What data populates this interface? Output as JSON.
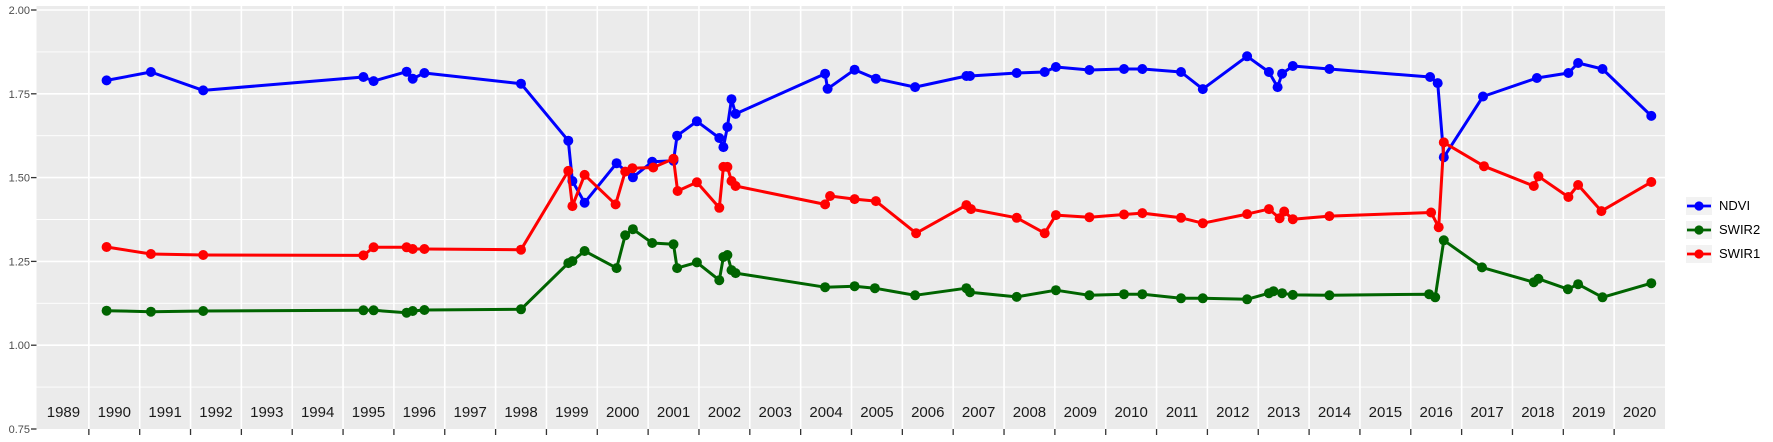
{
  "window": {
    "background": "#FFFFFF"
  },
  "panel": {
    "background": "#EBEBEB",
    "grid_color": "#FFFFFF",
    "tick_color": "#333333",
    "y_label_color": "#4D4D4D",
    "x_label_color": "#1A1A1A"
  },
  "legend": {
    "items": [
      {
        "label": "NDVI",
        "color": "#0000FF"
      },
      {
        "label": "SWIR2",
        "color": "#006400"
      },
      {
        "label": "SWIR1",
        "color": "#FF0000"
      }
    ]
  },
  "chart_data": {
    "type": "line",
    "title": "",
    "xlabel": "",
    "ylabel": "",
    "grid": true,
    "legend_position": "right",
    "x_range": [
      1989,
      2021
    ],
    "ylim": [
      0.75,
      2.0
    ],
    "y_tick_values": [
      2.0,
      1.75,
      1.5,
      1.25,
      1.0,
      0.75
    ],
    "y_tick_labels": [
      "2.00",
      "1.75",
      "1.50",
      "1.25",
      "1.00",
      "0.75"
    ],
    "y_major_gridlines": [
      1.0,
      1.25,
      1.5,
      1.75,
      2.0
    ],
    "y_minor_gridlines": [
      0.875,
      1.125,
      1.375,
      1.625,
      1.875
    ],
    "x_gridline_years": [
      1990,
      1991,
      1992,
      1993,
      1994,
      1995,
      1996,
      1997,
      1998,
      1999,
      2000,
      2001,
      2002,
      2003,
      2004,
      2005,
      2006,
      2007,
      2008,
      2009,
      2010,
      2011,
      2012,
      2013,
      2014,
      2015,
      2016,
      2017,
      2018,
      2019,
      2020
    ],
    "x_year_labels": [
      "1989",
      "1990",
      "1991",
      "1992",
      "1993",
      "1994",
      "1995",
      "1996",
      "1997",
      "1998",
      "1999",
      "2000",
      "2001",
      "2002",
      "2003",
      "2004",
      "2005",
      "2006",
      "2007",
      "2008",
      "2009",
      "2010",
      "2011",
      "2012",
      "2013",
      "2014",
      "2015",
      "2016",
      "2017",
      "2018",
      "2019",
      "2020"
    ],
    "series": [
      {
        "name": "NDVI",
        "color": "#0000FF",
        "points": [
          [
            1990.35,
            1.79
          ],
          [
            1991.22,
            1.815
          ],
          [
            1992.25,
            1.76
          ],
          [
            1995.4,
            1.8
          ],
          [
            1995.6,
            1.788
          ],
          [
            1996.25,
            1.816
          ],
          [
            1996.37,
            1.795
          ],
          [
            1996.6,
            1.812
          ],
          [
            1998.5,
            1.78
          ],
          [
            1999.43,
            1.61
          ],
          [
            1999.51,
            1.49
          ],
          [
            1999.75,
            1.425
          ],
          [
            2000.38,
            1.543
          ],
          [
            2000.7,
            1.501
          ],
          [
            2001.08,
            1.547
          ],
          [
            2001.5,
            1.55
          ],
          [
            2001.57,
            1.625
          ],
          [
            2001.96,
            1.668
          ],
          [
            2002.4,
            1.618
          ],
          [
            2002.48,
            1.591
          ],
          [
            2002.56,
            1.651
          ],
          [
            2002.64,
            1.734
          ],
          [
            2002.72,
            1.69
          ],
          [
            2004.48,
            1.81
          ],
          [
            2004.53,
            1.765
          ],
          [
            2005.06,
            1.822
          ],
          [
            2005.48,
            1.795
          ],
          [
            2006.25,
            1.77
          ],
          [
            2007.26,
            1.803
          ],
          [
            2007.33,
            1.803
          ],
          [
            2008.25,
            1.812
          ],
          [
            2008.8,
            1.815
          ],
          [
            2009.02,
            1.83
          ],
          [
            2009.68,
            1.821
          ],
          [
            2010.36,
            1.824
          ],
          [
            2010.72,
            1.824
          ],
          [
            2011.48,
            1.815
          ],
          [
            2011.91,
            1.764
          ],
          [
            2012.78,
            1.862
          ],
          [
            2013.21,
            1.815
          ],
          [
            2013.38,
            1.77
          ],
          [
            2013.47,
            1.81
          ],
          [
            2013.68,
            1.833
          ],
          [
            2014.4,
            1.824
          ],
          [
            2016.38,
            1.8
          ],
          [
            2016.53,
            1.782
          ],
          [
            2016.65,
            1.561
          ],
          [
            2017.42,
            1.742
          ],
          [
            2018.48,
            1.797
          ],
          [
            2019.1,
            1.812
          ],
          [
            2019.29,
            1.842
          ],
          [
            2019.77,
            1.824
          ],
          [
            2020.73,
            1.684
          ]
        ]
      },
      {
        "name": "SWIR2",
        "color": "#006400",
        "points": [
          [
            1990.35,
            1.103
          ],
          [
            1991.22,
            1.1
          ],
          [
            1992.25,
            1.102
          ],
          [
            1995.4,
            1.104
          ],
          [
            1995.6,
            1.104
          ],
          [
            1996.25,
            1.097
          ],
          [
            1996.37,
            1.102
          ],
          [
            1996.6,
            1.105
          ],
          [
            1998.5,
            1.107
          ],
          [
            1999.43,
            1.245
          ],
          [
            1999.51,
            1.251
          ],
          [
            1999.75,
            1.281
          ],
          [
            2000.38,
            1.23
          ],
          [
            2000.55,
            1.328
          ],
          [
            2000.7,
            1.346
          ],
          [
            2001.08,
            1.305
          ],
          [
            2001.5,
            1.301
          ],
          [
            2001.57,
            1.23
          ],
          [
            2001.96,
            1.247
          ],
          [
            2002.4,
            1.194
          ],
          [
            2002.48,
            1.263
          ],
          [
            2002.56,
            1.269
          ],
          [
            2002.64,
            1.224
          ],
          [
            2002.72,
            1.215
          ],
          [
            2004.48,
            1.173
          ],
          [
            2005.06,
            1.176
          ],
          [
            2005.46,
            1.17
          ],
          [
            2006.25,
            1.149
          ],
          [
            2007.26,
            1.17
          ],
          [
            2007.33,
            1.158
          ],
          [
            2008.25,
            1.144
          ],
          [
            2009.02,
            1.164
          ],
          [
            2009.68,
            1.149
          ],
          [
            2010.36,
            1.152
          ],
          [
            2010.72,
            1.152
          ],
          [
            2011.48,
            1.14
          ],
          [
            2011.91,
            1.14
          ],
          [
            2012.78,
            1.137
          ],
          [
            2013.21,
            1.155
          ],
          [
            2013.3,
            1.161
          ],
          [
            2013.47,
            1.155
          ],
          [
            2013.68,
            1.15
          ],
          [
            2014.4,
            1.149
          ],
          [
            2016.36,
            1.152
          ],
          [
            2016.48,
            1.143
          ],
          [
            2016.65,
            1.313
          ],
          [
            2017.4,
            1.232
          ],
          [
            2018.42,
            1.188
          ],
          [
            2018.51,
            1.198
          ],
          [
            2019.09,
            1.167
          ],
          [
            2019.29,
            1.182
          ],
          [
            2019.77,
            1.143
          ],
          [
            2020.73,
            1.185
          ]
        ]
      },
      {
        "name": "SWIR1",
        "color": "#FF0000",
        "points": [
          [
            1990.35,
            1.293
          ],
          [
            1991.22,
            1.272
          ],
          [
            1992.25,
            1.269
          ],
          [
            1995.4,
            1.268
          ],
          [
            1995.6,
            1.292
          ],
          [
            1996.25,
            1.292
          ],
          [
            1996.37,
            1.287
          ],
          [
            1996.6,
            1.287
          ],
          [
            1998.5,
            1.285
          ],
          [
            1999.43,
            1.52
          ],
          [
            1999.51,
            1.415
          ],
          [
            1999.75,
            1.508
          ],
          [
            2000.36,
            1.42
          ],
          [
            2000.55,
            1.518
          ],
          [
            2000.69,
            1.528
          ],
          [
            2001.1,
            1.53
          ],
          [
            2001.5,
            1.556
          ],
          [
            2001.58,
            1.46
          ],
          [
            2001.96,
            1.486
          ],
          [
            2002.4,
            1.41
          ],
          [
            2002.48,
            1.532
          ],
          [
            2002.56,
            1.532
          ],
          [
            2002.64,
            1.49
          ],
          [
            2002.72,
            1.475
          ],
          [
            2004.48,
            1.42
          ],
          [
            2004.58,
            1.445
          ],
          [
            2005.06,
            1.436
          ],
          [
            2005.48,
            1.43
          ],
          [
            2006.27,
            1.334
          ],
          [
            2007.26,
            1.418
          ],
          [
            2007.35,
            1.406
          ],
          [
            2008.25,
            1.38
          ],
          [
            2008.8,
            1.334
          ],
          [
            2009.02,
            1.388
          ],
          [
            2009.68,
            1.382
          ],
          [
            2010.36,
            1.39
          ],
          [
            2010.72,
            1.394
          ],
          [
            2011.48,
            1.38
          ],
          [
            2011.91,
            1.364
          ],
          [
            2012.78,
            1.391
          ],
          [
            2013.21,
            1.406
          ],
          [
            2013.42,
            1.379
          ],
          [
            2013.51,
            1.399
          ],
          [
            2013.68,
            1.376
          ],
          [
            2014.4,
            1.385
          ],
          [
            2016.4,
            1.396
          ],
          [
            2016.55,
            1.352
          ],
          [
            2016.65,
            1.605
          ],
          [
            2017.44,
            1.534
          ],
          [
            2018.42,
            1.475
          ],
          [
            2018.51,
            1.504
          ],
          [
            2019.1,
            1.442
          ],
          [
            2019.29,
            1.478
          ],
          [
            2019.75,
            1.4
          ],
          [
            2020.73,
            1.487
          ]
        ]
      }
    ]
  }
}
